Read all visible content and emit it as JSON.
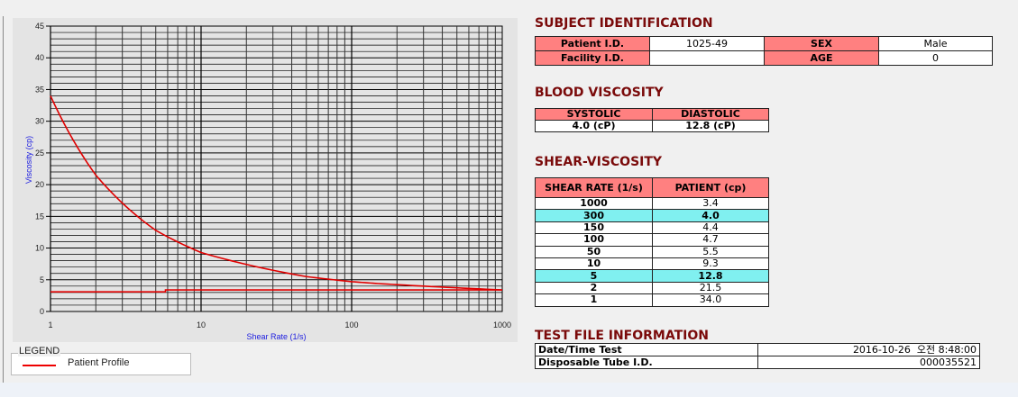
{
  "chart_data": {
    "type": "line",
    "xlabel": "Shear Rate (1/s)",
    "ylabel": "Viscosity (cp)",
    "xscale": "log",
    "xlim": [
      1,
      1000
    ],
    "ylim": [
      0,
      45
    ],
    "xticks": [
      "1",
      "10",
      "100",
      "1000"
    ],
    "yticks": [
      "0",
      "5",
      "10",
      "15",
      "20",
      "25",
      "30",
      "35",
      "40",
      "45"
    ],
    "grid": true,
    "legend_position": "bottom-left",
    "series": [
      {
        "name": "Patient Profile",
        "color": "#e00000",
        "x": [
          1,
          2,
          5,
          10,
          50,
          100,
          150,
          300,
          1000
        ],
        "y": [
          34.0,
          21.5,
          12.8,
          9.3,
          5.5,
          4.7,
          4.4,
          4.0,
          3.4
        ]
      },
      {
        "color": "#e00000",
        "x": [
          1,
          5.8,
          5.8,
          1000
        ],
        "y": [
          3.1,
          3.1,
          3.4,
          3.4
        ]
      }
    ]
  },
  "legend": {
    "title": "LEGEND",
    "entry": "Patient Profile"
  },
  "subject": {
    "title": "SUBJECT IDENTIFICATION",
    "patient_id_label": "Patient I.D.",
    "patient_id": "1025-49",
    "sex_label": "SEX",
    "sex": "Male",
    "facility_label": "Facility I.D.",
    "facility": "",
    "age_label": "AGE",
    "age": "0"
  },
  "blood": {
    "title": "BLOOD VISCOSITY",
    "systolic_label": "SYSTOLIC",
    "diastolic_label": "DIASTOLIC",
    "systolic": "4.0 (cP)",
    "diastolic": "12.8 (cP)"
  },
  "shear": {
    "title": "SHEAR-VISCOSITY",
    "col1": "SHEAR RATE (1/s)",
    "col2": "PATIENT (cp)",
    "rows": [
      [
        "1000",
        "3.4",
        false
      ],
      [
        "300",
        "4.0",
        true
      ],
      [
        "150",
        "4.4",
        false
      ],
      [
        "100",
        "4.7",
        false
      ],
      [
        "50",
        "5.5",
        false
      ],
      [
        "10",
        "9.3",
        false
      ],
      [
        "5",
        "12.8",
        true
      ],
      [
        "2",
        "21.5",
        false
      ],
      [
        "1",
        "34.0",
        false
      ]
    ],
    "highlight_color": "#80f0f0"
  },
  "testfile": {
    "title": "TEST FILE INFORMATION",
    "date_label": "Date/Time Test",
    "date": "2016-10-26  오전 8:48:00",
    "tube_label": "Disposable Tube I.D.",
    "tube": "000035521"
  }
}
